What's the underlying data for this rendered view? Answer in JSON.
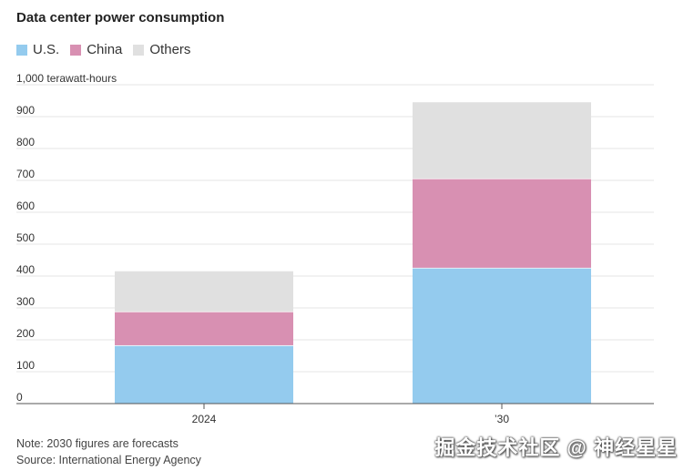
{
  "chart_data": {
    "type": "bar",
    "stacked": true,
    "title": "Data center power consumption",
    "ylabel": "1,000 terawatt-hours",
    "ylim": [
      0,
      1000
    ],
    "yticks": [
      0,
      100,
      200,
      300,
      400,
      500,
      600,
      700,
      800,
      900
    ],
    "categories": [
      "2024",
      "’30"
    ],
    "series": [
      {
        "name": "U.S.",
        "values": [
          183,
          426
        ],
        "color": "#94cbee"
      },
      {
        "name": "China",
        "values": [
          106,
          280
        ],
        "color": "#d890b2"
      },
      {
        "name": "Others",
        "values": [
          126,
          239
        ],
        "color": "#e0e0e0"
      }
    ]
  },
  "notes": {
    "note": "Note: 2030 figures are forecasts",
    "source": "Source: International Energy Agency"
  },
  "watermark": "掘金技术社区 @ 神经星星"
}
